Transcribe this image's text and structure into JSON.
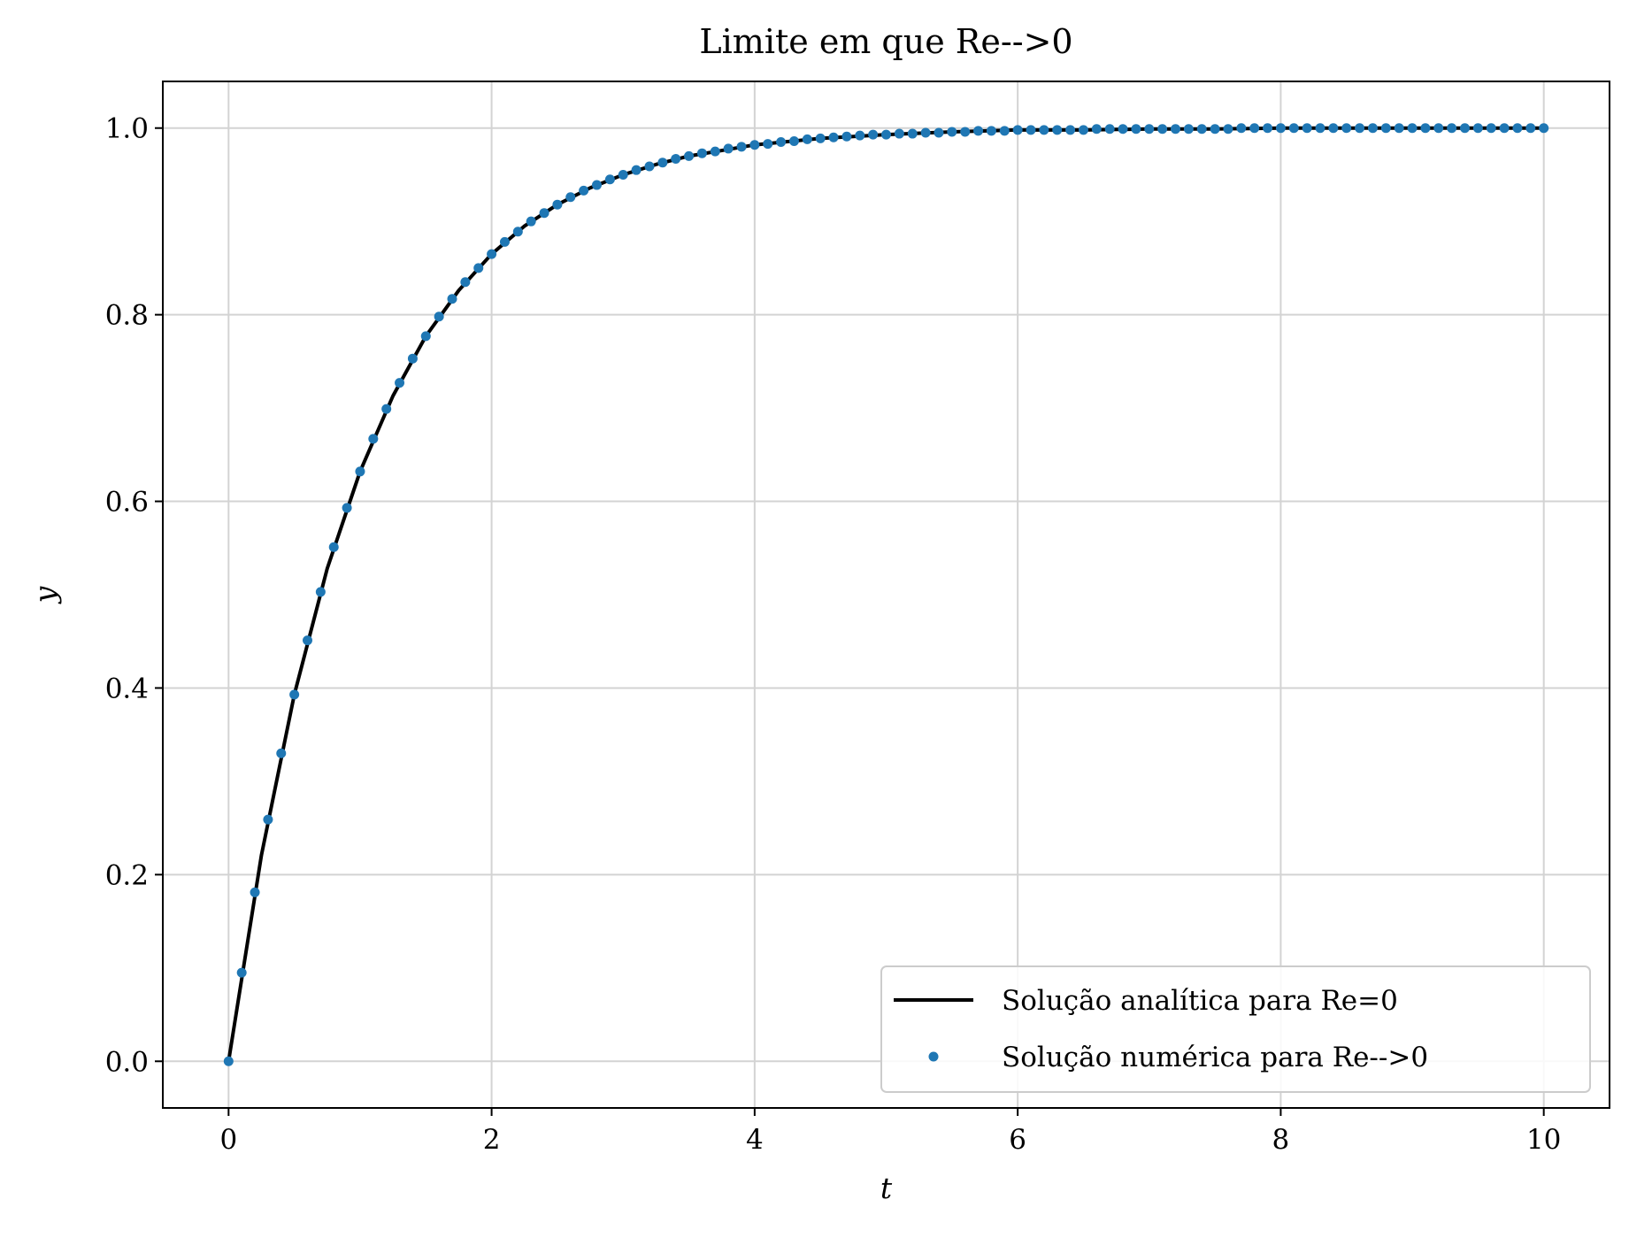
{
  "chart_data": {
    "type": "line",
    "title": "Limite em que Re-->0",
    "xlabel": "t",
    "ylabel": "y",
    "xlim": [
      -0.5,
      10.5
    ],
    "ylim": [
      -0.05,
      1.05
    ],
    "xticks": [
      0,
      2,
      4,
      6,
      8,
      10
    ],
    "xtick_labels": [
      "0",
      "2",
      "4",
      "6",
      "8",
      "10"
    ],
    "yticks": [
      0.0,
      0.2,
      0.4,
      0.6,
      0.8,
      1.0
    ],
    "ytick_labels": [
      "0.0",
      "0.2",
      "0.4",
      "0.6",
      "0.8",
      "1.0"
    ],
    "grid": true,
    "legend_position": "lower-right",
    "series": [
      {
        "name": "Solução analítica para Re=0",
        "kind": "line",
        "color": "#000000",
        "x": [
          0,
          0.25,
          0.5,
          0.75,
          1,
          1.25,
          1.5,
          1.75,
          2,
          2.25,
          2.5,
          2.75,
          3,
          3.25,
          3.5,
          3.75,
          4,
          4.5,
          5,
          5.5,
          6,
          6.5,
          7,
          7.5,
          8,
          8.5,
          9,
          9.5,
          10
        ],
        "y": [
          0,
          0.221,
          0.393,
          0.528,
          0.632,
          0.713,
          0.777,
          0.826,
          0.865,
          0.895,
          0.918,
          0.936,
          0.95,
          0.961,
          0.97,
          0.976,
          0.982,
          0.989,
          0.993,
          0.996,
          0.998,
          0.998,
          0.999,
          0.999,
          1.0,
          1.0,
          1.0,
          1.0,
          1.0
        ]
      },
      {
        "name": "Solução numérica para Re-->0",
        "kind": "scatter",
        "color": "#1f77b4",
        "x": [
          0,
          0.1,
          0.2,
          0.3,
          0.4,
          0.5,
          0.6,
          0.7,
          0.8,
          0.9,
          1.0,
          1.1,
          1.2,
          1.3,
          1.4,
          1.5,
          1.6,
          1.7,
          1.8,
          1.9,
          2.0,
          2.1,
          2.2,
          2.3,
          2.4,
          2.5,
          2.6,
          2.7,
          2.8,
          2.9,
          3.0,
          3.1,
          3.2,
          3.3,
          3.4,
          3.5,
          3.6,
          3.7,
          3.8,
          3.9,
          4.0,
          4.1,
          4.2,
          4.3,
          4.4,
          4.5,
          4.6,
          4.7,
          4.8,
          4.9,
          5.0,
          5.1,
          5.2,
          5.3,
          5.4,
          5.5,
          5.6,
          5.7,
          5.8,
          5.9,
          6.0,
          6.1,
          6.2,
          6.3,
          6.4,
          6.5,
          6.6,
          6.7,
          6.8,
          6.9,
          7.0,
          7.1,
          7.2,
          7.3,
          7.4,
          7.5,
          7.6,
          7.7,
          7.8,
          7.9,
          8.0,
          8.1,
          8.2,
          8.3,
          8.4,
          8.5,
          8.6,
          8.7,
          8.8,
          8.9,
          9.0,
          9.1,
          9.2,
          9.3,
          9.4,
          9.5,
          9.6,
          9.7,
          9.8,
          9.9,
          10.0
        ],
        "y": [
          0.0,
          0.095,
          0.181,
          0.259,
          0.33,
          0.393,
          0.451,
          0.503,
          0.551,
          0.593,
          0.632,
          0.667,
          0.699,
          0.727,
          0.753,
          0.777,
          0.798,
          0.817,
          0.835,
          0.85,
          0.865,
          0.878,
          0.889,
          0.9,
          0.909,
          0.918,
          0.926,
          0.933,
          0.939,
          0.945,
          0.95,
          0.955,
          0.959,
          0.963,
          0.967,
          0.97,
          0.973,
          0.975,
          0.978,
          0.98,
          0.982,
          0.983,
          0.985,
          0.986,
          0.988,
          0.989,
          0.99,
          0.991,
          0.992,
          0.993,
          0.993,
          0.994,
          0.994,
          0.995,
          0.995,
          0.996,
          0.996,
          0.997,
          0.997,
          0.997,
          0.998,
          0.998,
          0.998,
          0.998,
          0.998,
          0.998,
          0.999,
          0.999,
          0.999,
          0.999,
          0.999,
          0.999,
          0.999,
          0.999,
          0.999,
          0.999,
          0.999,
          1.0,
          1.0,
          1.0,
          1.0,
          1.0,
          1.0,
          1.0,
          1.0,
          1.0,
          1.0,
          1.0,
          1.0,
          1.0,
          1.0,
          1.0,
          1.0,
          1.0,
          1.0,
          1.0,
          1.0,
          1.0,
          1.0,
          1.0,
          1.0
        ]
      }
    ]
  }
}
